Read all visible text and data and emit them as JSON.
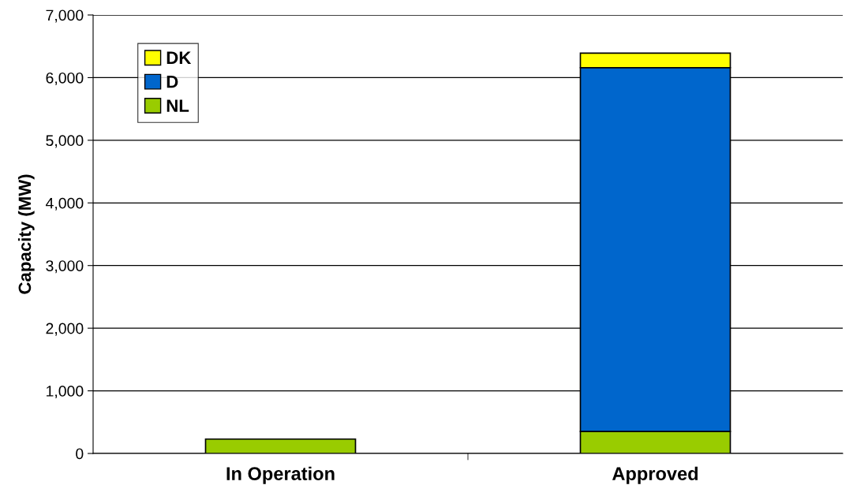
{
  "chart_data": {
    "type": "bar",
    "stacked": true,
    "ylabel": "Capacity (MW)",
    "categories": [
      "In Operation",
      "Approved"
    ],
    "series": [
      {
        "name": "NL",
        "color": "#99cc00",
        "values": [
          230,
          350
        ]
      },
      {
        "name": "D",
        "color": "#0066cc",
        "values": [
          null,
          5810
        ]
      },
      {
        "name": "DK",
        "color": "#ffff00",
        "values": [
          null,
          230
        ]
      }
    ],
    "ylim": [
      0,
      7000
    ],
    "yticks": [
      0,
      {
        "value": 1000,
        "label": "1,000"
      },
      {
        "value": 2000,
        "label": "2,000"
      },
      {
        "value": 3000,
        "label": "3,000"
      },
      {
        "value": 4000,
        "label": "4,000"
      },
      {
        "value": 5000,
        "label": "5,000"
      },
      {
        "value": 6000,
        "label": "6,000"
      },
      {
        "value": 7000,
        "label": "7,000"
      }
    ],
    "grid": "y",
    "legend": "top left"
  }
}
